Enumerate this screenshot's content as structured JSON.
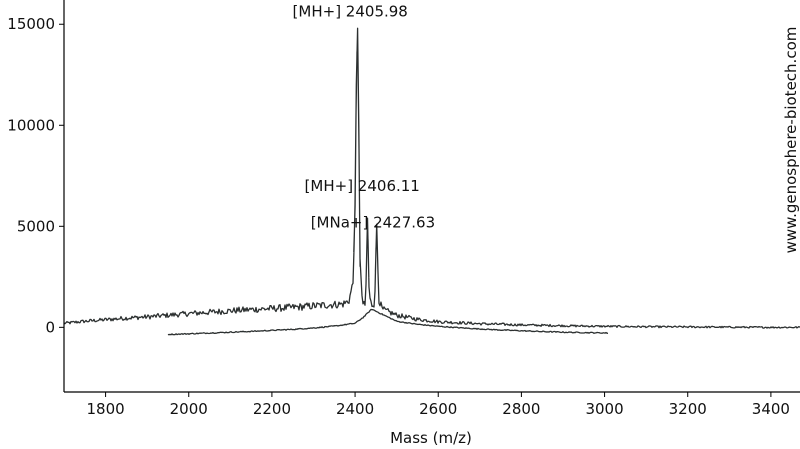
{
  "chart_data": {
    "type": "line",
    "title": "",
    "xlabel": "Mass (m/z)",
    "ylabel": "",
    "xlim": [
      1700,
      3470
    ],
    "ylim": [
      -3200,
      16200
    ],
    "xticks": [
      1800,
      2000,
      2200,
      2400,
      2600,
      2800,
      3000,
      3200,
      3400
    ],
    "yticks": [
      0,
      5000,
      10000,
      15000
    ],
    "grid": false,
    "colors": {
      "line": "#2b2f2f",
      "axis": "#000000"
    },
    "series": [
      {
        "points": [
          [
            1700,
            200
          ],
          [
            1750,
            300
          ],
          [
            1800,
            380
          ],
          [
            1850,
            460
          ],
          [
            1900,
            520
          ],
          [
            1950,
            600
          ],
          [
            2000,
            680
          ],
          [
            2050,
            750
          ],
          [
            2100,
            820
          ],
          [
            2150,
            880
          ],
          [
            2200,
            930
          ],
          [
            2250,
            990
          ],
          [
            2300,
            1060
          ],
          [
            2340,
            1120
          ],
          [
            2370,
            1150
          ],
          [
            2385,
            1300
          ],
          [
            2395,
            2200
          ],
          [
            2400,
            6000
          ],
          [
            2403,
            12000
          ],
          [
            2405.98,
            14800
          ],
          [
            2409,
            10000
          ],
          [
            2412,
            3000
          ],
          [
            2418,
            1200
          ],
          [
            2425,
            1000
          ],
          [
            2430,
            5400
          ],
          [
            2434,
            1500
          ],
          [
            2440,
            1100
          ],
          [
            2447,
            1200
          ],
          [
            2452,
            5100
          ],
          [
            2457,
            1400
          ],
          [
            2465,
            900
          ],
          [
            2500,
            600
          ],
          [
            2550,
            400
          ],
          [
            2600,
            280
          ],
          [
            2700,
            180
          ],
          [
            2800,
            120
          ],
          [
            2900,
            80
          ],
          [
            3000,
            50
          ],
          [
            3100,
            30
          ],
          [
            3200,
            20
          ],
          [
            3300,
            10
          ],
          [
            3400,
            0
          ],
          [
            3470,
            0
          ]
        ]
      },
      {
        "points": [
          [
            1950,
            -350
          ],
          [
            2000,
            -320
          ],
          [
            2050,
            -280
          ],
          [
            2100,
            -240
          ],
          [
            2150,
            -200
          ],
          [
            2200,
            -150
          ],
          [
            2250,
            -100
          ],
          [
            2300,
            -30
          ],
          [
            2350,
            60
          ],
          [
            2400,
            200
          ],
          [
            2420,
            500
          ],
          [
            2440,
            900
          ],
          [
            2460,
            700
          ],
          [
            2480,
            500
          ],
          [
            2500,
            300
          ],
          [
            2550,
            150
          ],
          [
            2600,
            50
          ],
          [
            2650,
            -20
          ],
          [
            2700,
            -80
          ],
          [
            2750,
            -130
          ],
          [
            2800,
            -170
          ],
          [
            2850,
            -210
          ],
          [
            2900,
            -240
          ],
          [
            2950,
            -260
          ],
          [
            3010,
            -280
          ]
        ]
      }
    ],
    "annotations": [
      {
        "text": "[MH+] 2405.98",
        "x": 2405.98,
        "y": 14800
      },
      {
        "text": "[MH+] 2406.11",
        "x": 2430,
        "y": 5400
      },
      {
        "text": "[MNa+] 2427.63",
        "x": 2452,
        "y": 5100
      }
    ]
  },
  "watermark": "www.genosphere-biotech.com"
}
